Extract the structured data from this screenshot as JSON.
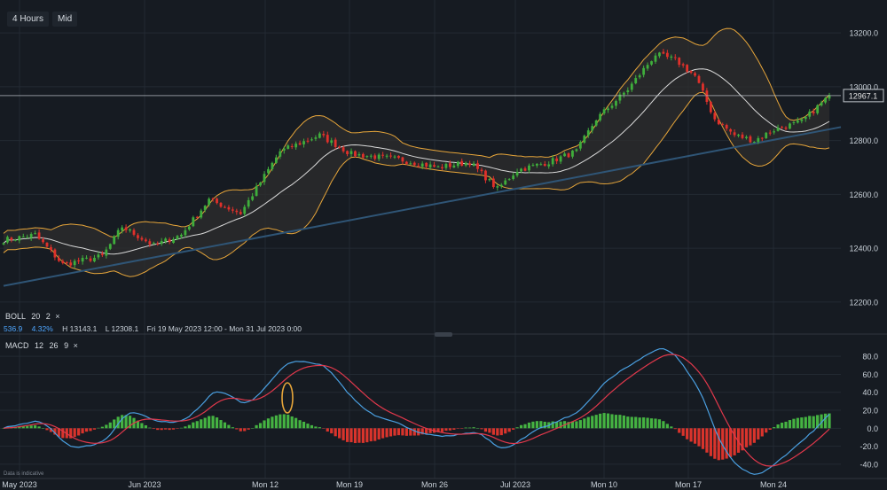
{
  "toolbar": {
    "timeframe": "4 Hours",
    "price_type": "Mid"
  },
  "boll": {
    "name": "BOLL",
    "period": "20",
    "stddev": "2",
    "close_symbol": "×"
  },
  "stats": {
    "value": "536.9",
    "pct": "4.32%",
    "high": "H 13143.1",
    "low": "L 12308.1",
    "range": "Fri 19 May 2023 12:00 - Mon 31 Jul 2023 0:00"
  },
  "macd": {
    "name": "MACD",
    "fast": "12",
    "slow": "26",
    "signal": "9",
    "close_symbol": "×"
  },
  "disclaimer": "Data is indicative",
  "colors": {
    "background": "#161b22",
    "up": "#3fae3c",
    "down": "#e0302a",
    "boll_band": "#e6a53a",
    "boll_mid": "#d9d9d9",
    "trendline": "#2f5576",
    "macd_line": "#4a9fe0",
    "signal_line": "#e0384b",
    "hist_pos": "#45b342",
    "hist_neg": "#d9342c",
    "annotation": "#e6a53a"
  },
  "chart_data": [
    {
      "type": "candlestick",
      "title": "",
      "y_ticks": [
        12200,
        12400,
        12600,
        12800,
        13000,
        13200
      ],
      "ylim": [
        12170,
        13230
      ],
      "x_ticks": [
        "May 2023",
        "Jun 2023",
        "Mon 12",
        "Mon 19",
        "Mon 26",
        "Jul 2023",
        "Mon 10",
        "Mon 17",
        "Mon 24"
      ],
      "last_price": 12967.1,
      "close_path": [
        [
          0,
          12430
        ],
        [
          8,
          12450
        ],
        [
          15,
          12340
        ],
        [
          25,
          12370
        ],
        [
          30,
          12480
        ],
        [
          38,
          12410
        ],
        [
          45,
          12450
        ],
        [
          52,
          12580
        ],
        [
          60,
          12530
        ],
        [
          70,
          12760
        ],
        [
          80,
          12820
        ],
        [
          88,
          12750
        ],
        [
          100,
          12730
        ],
        [
          110,
          12700
        ],
        [
          118,
          12720
        ],
        [
          125,
          12620
        ],
        [
          130,
          12690
        ],
        [
          138,
          12720
        ],
        [
          145,
          12760
        ],
        [
          150,
          12880
        ],
        [
          158,
          12990
        ],
        [
          165,
          13120
        ],
        [
          170,
          13100
        ],
        [
          175,
          13040
        ],
        [
          180,
          12880
        ],
        [
          185,
          12820
        ],
        [
          190,
          12800
        ],
        [
          195,
          12840
        ],
        [
          202,
          12870
        ],
        [
          209,
          12967.1
        ]
      ],
      "bollinger": {
        "period": 20,
        "stddev": 2
      },
      "trendline": [
        [
          0,
          12260
        ],
        [
          260,
          12850
        ]
      ]
    },
    {
      "type": "macd",
      "fast": 12,
      "slow": 26,
      "signal": 9,
      "y_ticks": [
        -40,
        -20,
        0,
        20,
        40,
        60,
        80
      ],
      "ylim": [
        -48,
        92
      ],
      "annotation": "ellipse"
    }
  ]
}
